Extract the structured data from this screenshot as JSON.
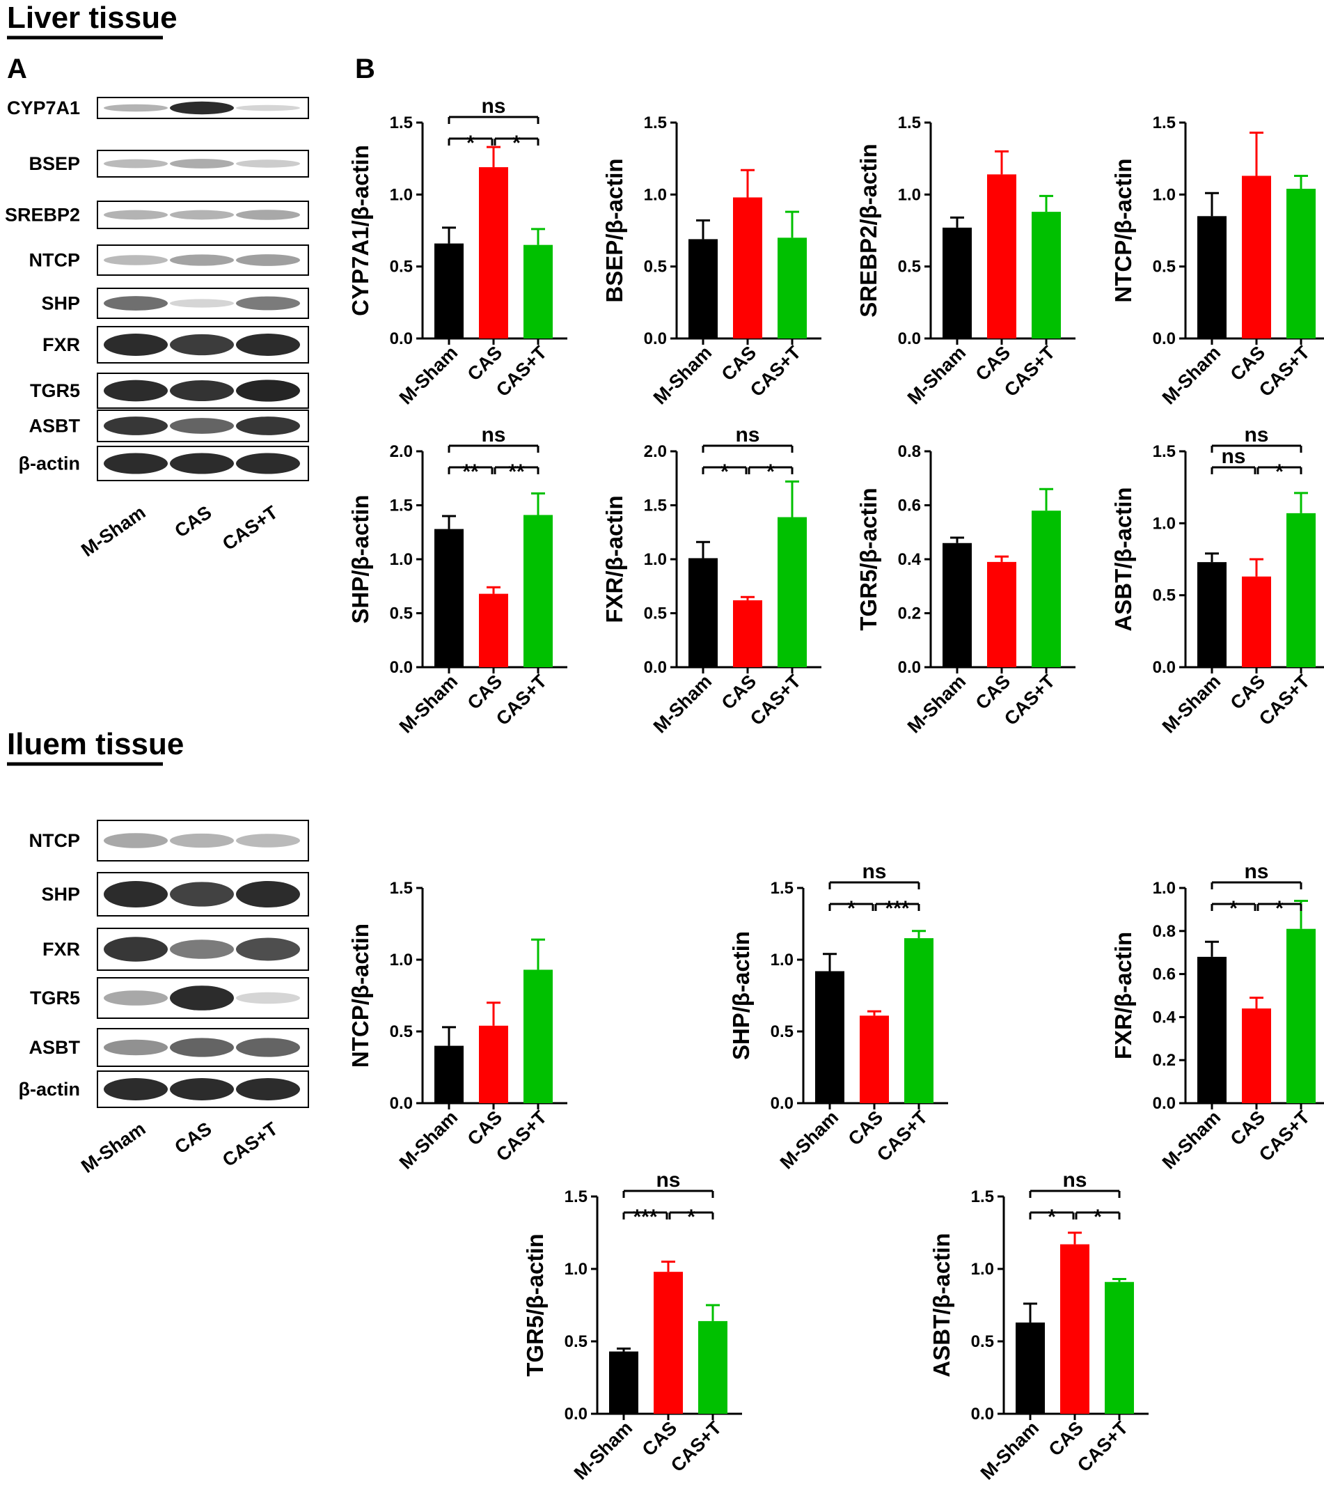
{
  "figure": {
    "liver_title": "Liver tissue",
    "ileum_title": "Iluem tissue",
    "panel_a": "A",
    "panel_b": "B"
  },
  "blots": {
    "lanes": [
      "M-Sham",
      "CAS",
      "CAS+T"
    ],
    "liver": [
      "CYP7A1",
      "BSEP",
      "SREBP2",
      "NTCP",
      "SHP",
      "FXR",
      "TGR5",
      "ASBT",
      "β-actin"
    ],
    "ileum": [
      "NTCP",
      "SHP",
      "FXR",
      "TGR5",
      "ASBT",
      "β-actin"
    ]
  },
  "colors": {
    "M-Sham": "#000000",
    "CAS": "#ff0000",
    "CAS+T": "#00c000"
  },
  "chart_data": [
    {
      "type": "bar",
      "ylabel": "CYP7A1/β-actin",
      "categories": [
        "M-Sham",
        "CAS",
        "CAS+T"
      ],
      "values": [
        0.66,
        1.19,
        0.65
      ],
      "errors": [
        0.11,
        0.14,
        0.11
      ],
      "ylim": [
        0,
        1.5
      ],
      "yticks": [
        "0.0",
        "0.5",
        "1.0",
        "1.5"
      ],
      "brackets": [
        {
          "from": 0,
          "to": 1,
          "label": "*"
        },
        {
          "from": 1,
          "to": 2,
          "label": "*"
        },
        {
          "from": 0,
          "to": 2,
          "label": "ns"
        }
      ]
    },
    {
      "type": "bar",
      "ylabel": "BSEP/β-actin",
      "categories": [
        "M-Sham",
        "CAS",
        "CAS+T"
      ],
      "values": [
        0.69,
        0.98,
        0.7
      ],
      "errors": [
        0.13,
        0.19,
        0.18
      ],
      "ylim": [
        0,
        1.5
      ],
      "yticks": [
        "0.0",
        "0.5",
        "1.0",
        "1.5"
      ],
      "brackets": []
    },
    {
      "type": "bar",
      "ylabel": "SREBP2/β-actin",
      "categories": [
        "M-Sham",
        "CAS",
        "CAS+T"
      ],
      "values": [
        0.77,
        1.14,
        0.88
      ],
      "errors": [
        0.07,
        0.16,
        0.11
      ],
      "ylim": [
        0,
        1.5
      ],
      "yticks": [
        "0.0",
        "0.5",
        "1.0",
        "1.5"
      ],
      "brackets": []
    },
    {
      "type": "bar",
      "ylabel": "NTCP/β-actin",
      "categories": [
        "M-Sham",
        "CAS",
        "CAS+T"
      ],
      "values": [
        0.85,
        1.13,
        1.04
      ],
      "errors": [
        0.16,
        0.3,
        0.09
      ],
      "ylim": [
        0,
        1.5
      ],
      "yticks": [
        "0.0",
        "0.5",
        "1.0",
        "1.5"
      ],
      "brackets": []
    },
    {
      "type": "bar",
      "ylabel": "SHP/β-actin",
      "categories": [
        "M-Sham",
        "CAS",
        "CAS+T"
      ],
      "values": [
        1.28,
        0.68,
        1.41
      ],
      "errors": [
        0.12,
        0.06,
        0.2
      ],
      "ylim": [
        0,
        2.0
      ],
      "yticks": [
        "0.0",
        "0.5",
        "1.0",
        "1.5",
        "2.0"
      ],
      "brackets": [
        {
          "from": 0,
          "to": 1,
          "label": "**"
        },
        {
          "from": 1,
          "to": 2,
          "label": "**"
        },
        {
          "from": 0,
          "to": 2,
          "label": "ns"
        }
      ]
    },
    {
      "type": "bar",
      "ylabel": "FXR/β-actin",
      "categories": [
        "M-Sham",
        "CAS",
        "CAS+T"
      ],
      "values": [
        1.01,
        0.62,
        1.39
      ],
      "errors": [
        0.15,
        0.03,
        0.33
      ],
      "ylim": [
        0,
        2.0
      ],
      "yticks": [
        "0.0",
        "0.5",
        "1.0",
        "1.5",
        "2.0"
      ],
      "brackets": [
        {
          "from": 0,
          "to": 1,
          "label": "*"
        },
        {
          "from": 1,
          "to": 2,
          "label": "*"
        },
        {
          "from": 0,
          "to": 2,
          "label": "ns"
        }
      ]
    },
    {
      "type": "bar",
      "ylabel": "TGR5/β-actin",
      "categories": [
        "M-Sham",
        "CAS",
        "CAS+T"
      ],
      "values": [
        0.46,
        0.39,
        0.58
      ],
      "errors": [
        0.02,
        0.02,
        0.08
      ],
      "ylim": [
        0,
        0.8
      ],
      "yticks": [
        "0.0",
        "0.2",
        "0.4",
        "0.6",
        "0.8"
      ],
      "brackets": []
    },
    {
      "type": "bar",
      "ylabel": "ASBT/β-actin",
      "categories": [
        "M-Sham",
        "CAS",
        "CAS+T"
      ],
      "values": [
        0.73,
        0.63,
        1.07
      ],
      "errors": [
        0.06,
        0.12,
        0.14
      ],
      "ylim": [
        0,
        1.5
      ],
      "yticks": [
        "0.0",
        "0.5",
        "1.0",
        "1.5"
      ],
      "brackets": [
        {
          "from": 0,
          "to": 1,
          "label": "ns"
        },
        {
          "from": 1,
          "to": 2,
          "label": "*"
        },
        {
          "from": 0,
          "to": 2,
          "label": "ns"
        }
      ]
    },
    {
      "type": "bar",
      "ylabel": "NTCP/β-actin",
      "categories": [
        "M-Sham",
        "CAS",
        "CAS+T"
      ],
      "values": [
        0.4,
        0.54,
        0.93
      ],
      "errors": [
        0.13,
        0.16,
        0.21
      ],
      "ylim": [
        0,
        1.5
      ],
      "yticks": [
        "0.0",
        "0.5",
        "1.0",
        "1.5"
      ],
      "brackets": []
    },
    {
      "type": "bar",
      "ylabel": "SHP/β-actin",
      "categories": [
        "M-Sham",
        "CAS",
        "CAS+T"
      ],
      "values": [
        0.92,
        0.61,
        1.15
      ],
      "errors": [
        0.12,
        0.03,
        0.05
      ],
      "ylim": [
        0,
        1.5
      ],
      "yticks": [
        "0.0",
        "0.5",
        "1.0",
        "1.5"
      ],
      "brackets": [
        {
          "from": 0,
          "to": 1,
          "label": "*"
        },
        {
          "from": 1,
          "to": 2,
          "label": "***"
        },
        {
          "from": 0,
          "to": 2,
          "label": "ns"
        }
      ]
    },
    {
      "type": "bar",
      "ylabel": "FXR/β-actin",
      "categories": [
        "M-Sham",
        "CAS",
        "CAS+T"
      ],
      "values": [
        0.68,
        0.44,
        0.81
      ],
      "errors": [
        0.07,
        0.05,
        0.13
      ],
      "ylim": [
        0,
        1.0
      ],
      "yticks": [
        "0.0",
        "0.2",
        "0.4",
        "0.6",
        "0.8",
        "1.0"
      ],
      "brackets": [
        {
          "from": 0,
          "to": 1,
          "label": "*"
        },
        {
          "from": 1,
          "to": 2,
          "label": "*"
        },
        {
          "from": 0,
          "to": 2,
          "label": "ns"
        }
      ]
    },
    {
      "type": "bar",
      "ylabel": "TGR5/β-actin",
      "categories": [
        "M-Sham",
        "CAS",
        "CAS+T"
      ],
      "values": [
        0.43,
        0.98,
        0.64
      ],
      "errors": [
        0.02,
        0.07,
        0.11
      ],
      "ylim": [
        0,
        1.5
      ],
      "yticks": [
        "0.0",
        "0.5",
        "1.0",
        "1.5"
      ],
      "brackets": [
        {
          "from": 0,
          "to": 1,
          "label": "***"
        },
        {
          "from": 1,
          "to": 2,
          "label": "*"
        },
        {
          "from": 0,
          "to": 2,
          "label": "ns"
        }
      ]
    },
    {
      "type": "bar",
      "ylabel": "ASBT/β-actin",
      "categories": [
        "M-Sham",
        "CAS",
        "CAS+T"
      ],
      "values": [
        0.63,
        1.17,
        0.91
      ],
      "errors": [
        0.13,
        0.08,
        0.02
      ],
      "ylim": [
        0,
        1.5
      ],
      "yticks": [
        "0.0",
        "0.5",
        "1.0",
        "1.5"
      ],
      "brackets": [
        {
          "from": 0,
          "to": 1,
          "label": "*"
        },
        {
          "from": 1,
          "to": 2,
          "label": "*"
        },
        {
          "from": 0,
          "to": 2,
          "label": "ns"
        }
      ]
    }
  ]
}
